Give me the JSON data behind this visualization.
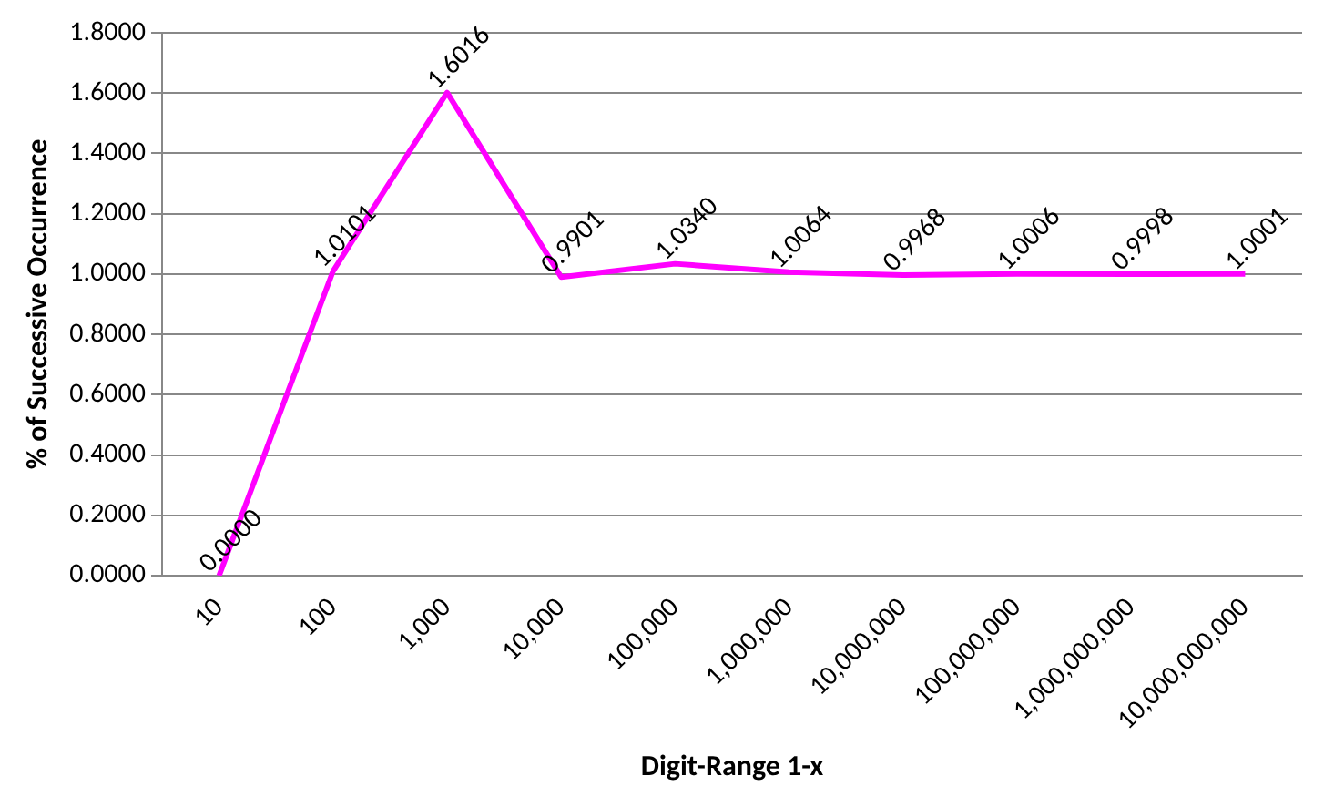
{
  "chart_data": {
    "type": "line",
    "xlabel": "Digit-Range 1-x",
    "ylabel": "% of Successive Occurrence",
    "categories": [
      "10",
      "100",
      "1,000",
      "10,000",
      "100,000",
      "1,000,000",
      "10,000,000",
      "100,000,000",
      "1,000,000,000",
      "10,000,000,000"
    ],
    "series": [
      {
        "color": "#ff00ff",
        "values": [
          0.0,
          1.0101,
          1.6016,
          0.9901,
          1.034,
          1.0064,
          0.9968,
          1.0006,
          0.9998,
          1.0001
        ],
        "value_labels": [
          "0.0000",
          "1.0101",
          "1.6016",
          "0.9901",
          "1.0340",
          "1.0064",
          "0.9968",
          "1.0006",
          "0.9998",
          "1.0001"
        ]
      }
    ],
    "ylim": [
      0,
      1.8
    ],
    "yticks": [
      {
        "value": 0,
        "label": "0.0000"
      },
      {
        "value": 0.2,
        "label": "0.2000"
      },
      {
        "value": 0.4,
        "label": "0.4000"
      },
      {
        "value": 0.6,
        "label": "0.6000"
      },
      {
        "value": 0.8,
        "label": "0.8000"
      },
      {
        "value": 1.0,
        "label": "1.0000"
      },
      {
        "value": 1.2,
        "label": "1.2000"
      },
      {
        "value": 1.4,
        "label": "1.4000"
      },
      {
        "value": 1.6,
        "label": "1.6000"
      },
      {
        "value": 1.8,
        "label": "1.8000"
      }
    ],
    "grid": "y",
    "marker": "none",
    "line_style": "solid",
    "legend": false
  }
}
